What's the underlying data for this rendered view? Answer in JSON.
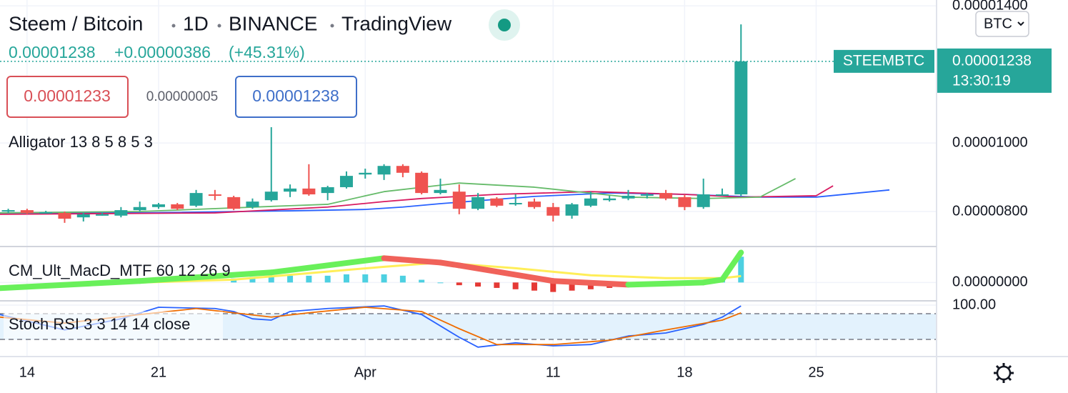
{
  "header": {
    "symbol": "Steem / Bitcoin",
    "interval": "1D",
    "exchange": "BINANCE",
    "source": "TradingView",
    "price": "0.00001238",
    "change": "+0.00000386",
    "change_pct": "(+45.31%)",
    "bid": "0.00001233",
    "spread": "0.00000005",
    "ask": "0.00001238",
    "currency": "BTC"
  },
  "price_tag": {
    "symbol": "STEEMBTC",
    "price": "0.00001238",
    "countdown": "13:30:19"
  },
  "xaxis": {
    "xlim": [
      12.56,
      62.37
    ],
    "xticks": [
      {
        "value": 14,
        "label": "14"
      },
      {
        "value": 21,
        "label": "21"
      },
      {
        "value": 32,
        "label": "Apr"
      },
      {
        "value": 42,
        "label": "11"
      },
      {
        "value": 49,
        "label": "18"
      },
      {
        "value": 56,
        "label": "25"
      }
    ]
  },
  "chart_data": [
    {
      "type": "candlestick",
      "title": "Alligator 13 8 5 8 5 3",
      "up_color": "#26a69a",
      "down_color": "#ef5350",
      "x": [
        13,
        14,
        15,
        16,
        17,
        18,
        19,
        20,
        21,
        22,
        23,
        24,
        25,
        26,
        27,
        28,
        29,
        30,
        31,
        32,
        33,
        34,
        35,
        36,
        37,
        38,
        39,
        40,
        41,
        42,
        43,
        44,
        45,
        46,
        47,
        48,
        49,
        50,
        51,
        52
      ],
      "open": [
        8e-06,
        8.04e-06,
        7.98e-06,
        7.96e-06,
        7.83e-06,
        7.92e-06,
        7.88e-06,
        8.04e-06,
        8.13e-06,
        8.21e-06,
        8.17e-06,
        8.5e-06,
        8.42e-06,
        8.13e-06,
        8.33e-06,
        8.58e-06,
        8.67e-06,
        8.54e-06,
        8.71e-06,
        9.08e-06,
        9.08e-06,
        9.33e-06,
        9.13e-06,
        8.54e-06,
        8.58e-06,
        8.08e-06,
        8.38e-06,
        8.21e-06,
        8.29e-06,
        8.13e-06,
        7.88e-06,
        8.17e-06,
        8.33e-06,
        8.38e-06,
        8.46e-06,
        8.54e-06,
        8.42e-06,
        8.13e-06,
        8.5e-06,
        8.5e-06
      ],
      "high": [
        8.08e-06,
        8.08e-06,
        8.02e-06,
        8e-06,
        7.96e-06,
        7.96e-06,
        8.13e-06,
        8.29e-06,
        8.25e-06,
        8.25e-06,
        8.63e-06,
        8.63e-06,
        8.46e-06,
        8.38e-06,
        1.046e-05,
        8.79e-06,
        9.38e-06,
        8.75e-06,
        9.17e-06,
        9.25e-06,
        9.38e-06,
        9.38e-06,
        9.17e-06,
        8.96e-06,
        8.79e-06,
        8.54e-06,
        8.42e-06,
        8.5e-06,
        8.38e-06,
        8.25e-06,
        8.25e-06,
        8.58e-06,
        8.46e-06,
        8.63e-06,
        8.54e-06,
        8.63e-06,
        8.5e-06,
        8.96e-06,
        8.67e-06,
        1.346e-05
      ],
      "low": [
        7.96e-06,
        7.92e-06,
        7.94e-06,
        7.67e-06,
        7.71e-06,
        7.88e-06,
        7.83e-06,
        8e-06,
        8.08e-06,
        8.04e-06,
        8.13e-06,
        8.33e-06,
        8.04e-06,
        8.08e-06,
        8.29e-06,
        8.42e-06,
        8.46e-06,
        8.33e-06,
        8.67e-06,
        8.96e-06,
        8.92e-06,
        9e-06,
        8.5e-06,
        8.5e-06,
        7.92e-06,
        8.04e-06,
        8.13e-06,
        8.17e-06,
        8.08e-06,
        7.71e-06,
        7.79e-06,
        8.13e-06,
        8.29e-06,
        8.33e-06,
        8.38e-06,
        8.33e-06,
        8.04e-06,
        8.08e-06,
        8.46e-06,
        8.46e-06
      ],
      "close": [
        8.04e-06,
        7.96e-06,
        7.98e-06,
        7.79e-06,
        7.92e-06,
        7.92e-06,
        8.04e-06,
        8.13e-06,
        8.21e-06,
        8.08e-06,
        8.54e-06,
        8.46e-06,
        8.08e-06,
        8.29e-06,
        8.58e-06,
        8.67e-06,
        8.5e-06,
        8.71e-06,
        9.04e-06,
        9.13e-06,
        9.33e-06,
        9.13e-06,
        8.54e-06,
        8.63e-06,
        8.08e-06,
        8.42e-06,
        8.17e-06,
        8.25e-06,
        8.13e-06,
        7.88e-06,
        8.21e-06,
        8.38e-06,
        8.38e-06,
        8.46e-06,
        8.5e-06,
        8.38e-06,
        8.13e-06,
        8.5e-06,
        8.5e-06,
        1.238e-05
      ],
      "ylim": [
        7e-06,
        1.417e-05
      ],
      "yticks": [
        {
          "value": 1.4e-05,
          "label": "0.00001400"
        },
        {
          "value": 1e-05,
          "label": "0.00001000"
        },
        {
          "value": 8e-06,
          "label": "0.00000800"
        }
      ],
      "series": [
        {
          "color": "#2962ff",
          "x": [
            12.56,
            20,
            28,
            32,
            34,
            36,
            41,
            45,
            49,
            53,
            56,
            59.9
          ],
          "values": [
            7.96e-06,
            7.96e-06,
            8.02e-06,
            8.06e-06,
            8.13e-06,
            8.23e-06,
            8.44e-06,
            8.54e-06,
            8.5e-06,
            8.42e-06,
            8.42e-06,
            8.63e-06
          ]
        },
        {
          "color": "#d81b60",
          "x": [
            12.56,
            24,
            30,
            33,
            35,
            39,
            44,
            49,
            52,
            56,
            56.9
          ],
          "values": [
            7.92e-06,
            7.96e-06,
            8.13e-06,
            8.29e-06,
            8.38e-06,
            8.5e-06,
            8.58e-06,
            8.5e-06,
            8.42e-06,
            8.46e-06,
            8.75e-06
          ]
        },
        {
          "color": "#66bb6a",
          "x": [
            12.56,
            20,
            28,
            30,
            33,
            37,
            41,
            46,
            50,
            53,
            54.9
          ],
          "values": [
            7.96e-06,
            8e-06,
            8.17e-06,
            8.21e-06,
            8.58e-06,
            8.83e-06,
            8.71e-06,
            8.42e-06,
            8.38e-06,
            8.42e-06,
            8.96e-06
          ]
        }
      ]
    },
    {
      "type": "macd",
      "title": "CM_Ult_MacD_MTF 60 12 26 9",
      "ylim": [
        -1.3e-07,
        2.6e-07
      ],
      "yticks": [
        {
          "value": 0,
          "label": "0.00000000"
        }
      ],
      "rise_color": "#69f05a",
      "fall_color": "#f0625a",
      "signal_color": "#ffee58",
      "hist_up_color": "#4dd0e1",
      "hist_down_color": "#e53935",
      "macd": {
        "x": [
          12.56,
          20,
          27,
          33,
          36,
          37,
          42,
          46,
          50,
          51,
          52
        ],
        "values": [
          -4.2e-08,
          1.1e-08,
          7.4e-08,
          1.79e-07,
          1.47e-07,
          1.26e-07,
          1.1e-08,
          -1.6e-08,
          0,
          2.1e-08,
          2.21e-07
        ]
      },
      "signal": {
        "x": [
          12.56,
          25,
          33,
          36,
          40,
          44,
          48,
          51,
          52
        ],
        "values": [
          -3.2e-08,
          2.1e-08,
          1.16e-07,
          1.47e-07,
          1.05e-07,
          5.3e-08,
          3.2e-08,
          3.2e-08,
          4.7e-08
        ]
      },
      "histogram": {
        "x": [
          25,
          26,
          27,
          28,
          29,
          30,
          31,
          32,
          33,
          34,
          35,
          36,
          37,
          38,
          39,
          40,
          41,
          42,
          43,
          44,
          45,
          46,
          47,
          48,
          49,
          50,
          51,
          52
        ],
        "values": [
          3e-08,
          4e-08,
          4e-08,
          5e-08,
          5e-08,
          5e-08,
          6e-08,
          6e-08,
          6e-08,
          5e-08,
          2e-08,
          0,
          -2e-08,
          -3e-08,
          -4e-08,
          -5e-08,
          -6e-08,
          -7e-08,
          -6e-08,
          -5e-08,
          -4e-08,
          -3e-08,
          -2e-08,
          -1e-08,
          1e-08,
          1e-08,
          2e-08,
          1.9e-07
        ]
      }
    },
    {
      "type": "stoch",
      "title": "Stoch RSI 3 3 14 14 close",
      "ylim": [
        -18.3,
        108.3
      ],
      "yticks": [
        {
          "value": 100,
          "label": "100.00"
        }
      ],
      "levels": [
        20,
        80
      ],
      "band_color": "#e3f2fd",
      "series": [
        {
          "color": "#2962ff",
          "x": [
            12.56,
            16,
            19,
            21,
            24,
            25,
            26,
            27,
            28,
            30,
            33,
            35,
            37,
            38,
            40,
            42,
            44,
            46,
            48,
            50,
            51,
            52
          ],
          "values": [
            78,
            42,
            68,
            95,
            92,
            85,
            68,
            65,
            85,
            92,
            98,
            78,
            25,
            2,
            12,
            5,
            8,
            28,
            35,
            55,
            72,
            98
          ]
        },
        {
          "color": "#ef6c00",
          "x": [
            12.56,
            16,
            20,
            23,
            25,
            27,
            29,
            32,
            35,
            37,
            39,
            42,
            45,
            48,
            51,
            52
          ],
          "values": [
            72,
            58,
            78,
            92,
            82,
            72,
            82,
            95,
            85,
            45,
            8,
            8,
            18,
            42,
            65,
            82
          ]
        }
      ]
    }
  ]
}
